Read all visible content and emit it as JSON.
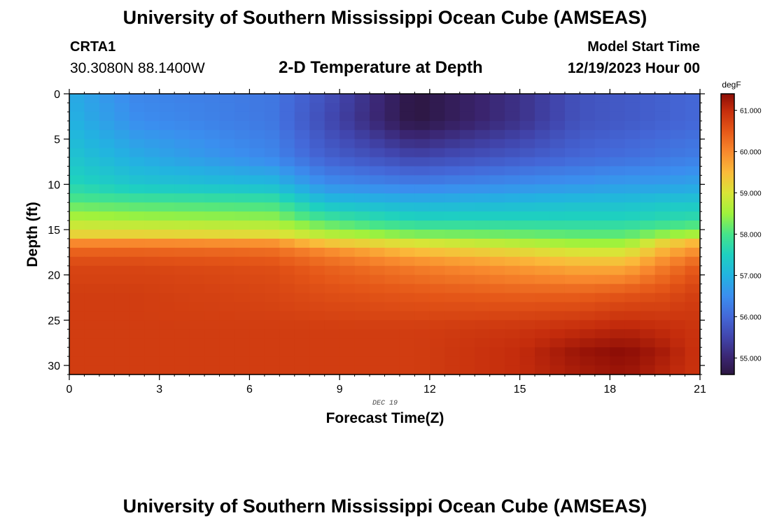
{
  "header": {
    "title": "University of Southern Mississippi Ocean Cube (AMSEAS)",
    "station_id": "CRTA1",
    "coordinates": "30.3080N  88.1400W",
    "plot_title": "2-D Temperature at Depth",
    "model_start_label": "Model Start Time",
    "model_start_value": "12/19/2023 Hour 00"
  },
  "footer": {
    "title": "University of Southern Mississippi Ocean Cube (AMSEAS)"
  },
  "chart_data": {
    "type": "heatmap",
    "title": "2-D Temperature at Depth",
    "xlabel": "Forecast Time(Z)",
    "ylabel": "Depth (ft)",
    "date_label": "DEC 19",
    "xlim": [
      0,
      21
    ],
    "ylim": [
      0,
      31
    ],
    "y_inverted": true,
    "x_ticks": [
      0,
      3,
      6,
      9,
      12,
      15,
      18,
      21
    ],
    "y_ticks": [
      0,
      5,
      10,
      15,
      20,
      25,
      30
    ],
    "colorbar": {
      "unit": "degF",
      "min": 54.6,
      "max": 61.4,
      "ticks": [
        "55.000",
        "56.000",
        "57.000",
        "58.000",
        "59.000",
        "60.000",
        "61.000"
      ],
      "tick_values": [
        55,
        56,
        57,
        58,
        59,
        60,
        61
      ],
      "stops": [
        {
          "value": 54.6,
          "color": "#2c1641"
        },
        {
          "value": 55.0,
          "color": "#3a2570"
        },
        {
          "value": 55.5,
          "color": "#4145ac"
        },
        {
          "value": 56.0,
          "color": "#4468d8"
        },
        {
          "value": 56.5,
          "color": "#3b8eef"
        },
        {
          "value": 57.0,
          "color": "#22b3e0"
        },
        {
          "value": 57.5,
          "color": "#1ed0c0"
        },
        {
          "value": 58.0,
          "color": "#46e48a"
        },
        {
          "value": 58.5,
          "color": "#9ff23c"
        },
        {
          "value": 59.0,
          "color": "#d9e437"
        },
        {
          "value": 59.5,
          "color": "#fbba3a"
        },
        {
          "value": 60.0,
          "color": "#f8882d"
        },
        {
          "value": 60.5,
          "color": "#e55718"
        },
        {
          "value": 61.0,
          "color": "#c42c0c"
        },
        {
          "value": 61.4,
          "color": "#8c0d06"
        }
      ]
    },
    "grid": {
      "times": [
        0,
        2.25,
        6.75,
        8.5,
        11.5,
        15,
        17,
        18.5,
        19.75,
        21
      ],
      "depths": [
        0,
        3,
        7,
        10,
        12,
        14,
        15.5,
        16.5,
        17.5,
        19,
        22,
        26,
        28.5,
        31
      ],
      "values": [
        [
          56.9,
          56.4,
          56.2,
          55.7,
          54.6,
          55.2,
          55.7,
          55.8,
          55.9,
          56.0
        ],
        [
          57.0,
          56.5,
          56.2,
          55.6,
          54.6,
          55.2,
          55.7,
          55.8,
          55.9,
          56.0
        ],
        [
          57.3,
          56.9,
          56.4,
          55.9,
          55.5,
          55.8,
          56.0,
          56.1,
          56.2,
          56.3
        ],
        [
          57.6,
          57.3,
          57.1,
          56.5,
          56.3,
          56.5,
          56.6,
          56.7,
          56.7,
          56.8
        ],
        [
          58.1,
          58.0,
          57.9,
          57.2,
          57.0,
          57.1,
          57.2,
          57.2,
          57.3,
          57.3
        ],
        [
          58.7,
          58.6,
          58.5,
          58.0,
          57.6,
          57.6,
          57.6,
          57.6,
          57.7,
          57.8
        ],
        [
          59.2,
          59.2,
          59.1,
          58.7,
          58.3,
          58.2,
          58.1,
          58.1,
          58.4,
          58.6
        ],
        [
          60.0,
          60.0,
          59.9,
          59.4,
          59.0,
          58.7,
          58.5,
          58.5,
          59.2,
          59.6
        ],
        [
          60.4,
          60.4,
          60.3,
          60.0,
          59.5,
          59.2,
          59.0,
          59.0,
          59.6,
          60.0
        ],
        [
          60.7,
          60.7,
          60.6,
          60.4,
          60.1,
          59.8,
          59.6,
          59.6,
          60.1,
          60.5
        ],
        [
          60.8,
          60.8,
          60.7,
          60.6,
          60.5,
          60.4,
          60.4,
          60.5,
          60.6,
          60.8
        ],
        [
          60.8,
          60.8,
          60.8,
          60.8,
          60.8,
          60.9,
          61.0,
          61.1,
          61.0,
          60.9
        ],
        [
          60.8,
          60.8,
          60.8,
          60.8,
          60.8,
          61.0,
          61.3,
          61.4,
          61.2,
          60.9
        ],
        [
          60.8,
          60.8,
          60.8,
          60.8,
          60.8,
          61.0,
          61.2,
          61.3,
          61.1,
          60.9
        ]
      ]
    }
  }
}
